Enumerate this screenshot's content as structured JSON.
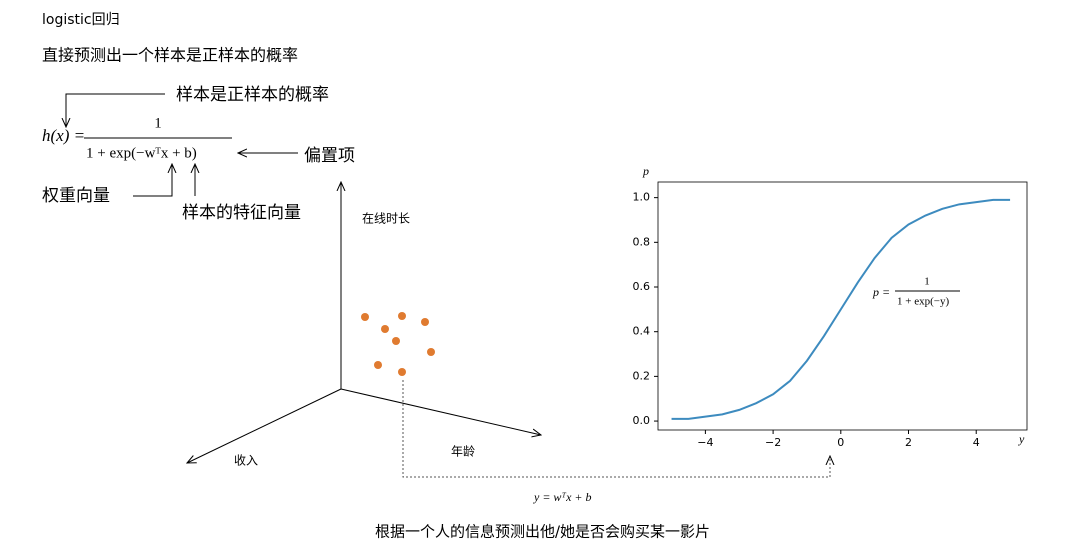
{
  "header": {
    "title": "logistic回归",
    "subtitle": "直接预测出一个样本是正样本的概率"
  },
  "formula": {
    "lhs": "h(x) =",
    "numerator": "1",
    "denominator": "1 + exp(−wᵀx + b)",
    "annotations": {
      "output": "样本是正样本的概率",
      "bias": "偏置项",
      "weights": "权重向量",
      "features": "样本的特征向量"
    }
  },
  "space": {
    "z_axis": "在线时长",
    "x_axis": "收入",
    "y_axis": "年龄",
    "projection": "y = wᵀx + b"
  },
  "caption": "根据一个人的信息预测出他/她是否会购买某一影片",
  "chart_data": {
    "type": "line",
    "x": [
      -5,
      -4.5,
      -4,
      -3.5,
      -3,
      -2.5,
      -2,
      -1.5,
      -1,
      -0.5,
      0,
      0.5,
      1,
      1.5,
      2,
      2.5,
      3,
      3.5,
      4,
      4.5,
      5
    ],
    "values": [
      0.01,
      0.01,
      0.02,
      0.03,
      0.05,
      0.08,
      0.12,
      0.18,
      0.27,
      0.38,
      0.5,
      0.62,
      0.73,
      0.82,
      0.88,
      0.92,
      0.95,
      0.97,
      0.98,
      0.99,
      0.99
    ],
    "color": "#3d8bbf",
    "xlim": [
      -5.4,
      5.5
    ],
    "ylim": [
      -0.04,
      1.07
    ],
    "xticks": [
      {
        "value": -4,
        "label": "−4"
      },
      {
        "value": -2,
        "label": "−2"
      },
      0,
      2,
      4
    ],
    "yticks": [
      {
        "value": 0,
        "label": "0.0"
      },
      0.2,
      0.4,
      0.6,
      0.8,
      {
        "value": 1,
        "label": "1.0"
      }
    ],
    "x_label": "y",
    "y_label": "p",
    "annotation": {
      "lhs": "p =",
      "numerator": "1",
      "denominator": "1 + exp(−y)"
    }
  }
}
